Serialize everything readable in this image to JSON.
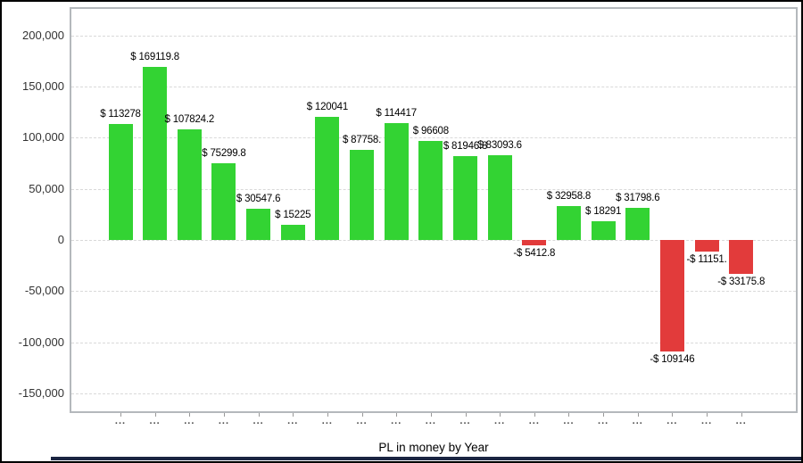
{
  "chart_data": {
    "type": "bar",
    "title": "PL in money by Year",
    "xlabel": "PL in money by Year",
    "categories": [
      "...",
      "...",
      "...",
      "...",
      "...",
      "...",
      "...",
      "...",
      "...",
      "...",
      "...",
      "...",
      "...",
      "...",
      "...",
      "...",
      "...",
      "...",
      "..."
    ],
    "values": [
      113278,
      169119.8,
      107824.2,
      75299.8,
      30547.6,
      15225,
      120041,
      87758,
      114417,
      96608,
      81946.8,
      83093.6,
      -5412.8,
      32958.8,
      18291,
      31798.6,
      -109146,
      -11151,
      -33175.8
    ],
    "bar_labels": [
      "$ 113278",
      "$ 169119.8",
      "$ 107824.2",
      "$ 75299.8",
      "$ 30547.6",
      "$ 15225",
      "$ 120041",
      "$ 87758.",
      "$ 114417",
      "$ 96608",
      "$ 81946.8",
      "$ 83093.6",
      "-$ 5412.8",
      "$ 32958.8",
      "$ 18291",
      "$ 31798.6",
      "-$ 109146",
      "-$ 11151.",
      "-$ 33175.8"
    ],
    "y_tick_values": [
      200000,
      150000,
      100000,
      50000,
      0,
      -50000,
      -100000,
      -150000
    ],
    "y_tick_labels": [
      "200,000",
      "150,000",
      "100,000",
      "50,000",
      "0",
      "-50,000",
      "-100,000",
      "-150,000"
    ],
    "ylim": [
      -167500,
      226000
    ],
    "grid": "horizontal dashed",
    "legend_position": "none",
    "colors": {
      "positive": "#33d333",
      "negative": "#e23b3b",
      "gridline": "#d9d9d9",
      "frame": "#b4b8bc",
      "axis_text": "#333333",
      "bar_label_text": "#000000",
      "bottom_accent": "#1b2542"
    }
  }
}
